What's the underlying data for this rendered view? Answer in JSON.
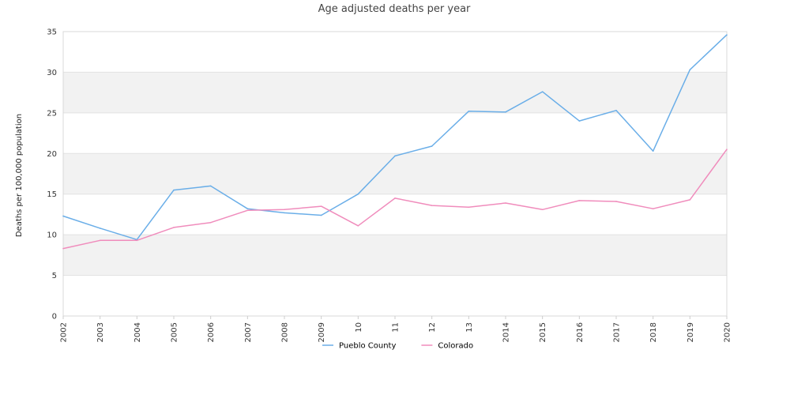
{
  "chart_data": {
    "type": "line",
    "title": "Age adjusted deaths per year",
    "xlabel": "",
    "ylabel": "Deaths per 100,000 population",
    "categories": [
      "2002",
      "2003",
      "2004",
      "2005",
      "2006",
      "2007",
      "2008",
      "2009",
      "2010",
      "2011",
      "2012",
      "2013",
      "2014",
      "2015",
      "2016",
      "2017",
      "2018",
      "2019",
      "2020"
    ],
    "tick_labels": [
      "2002",
      "2003",
      "2004",
      "2005",
      "2006",
      "2007",
      "2008",
      "2009",
      "10",
      "11",
      "12",
      "13",
      "2014",
      "2015",
      "2016",
      "2017",
      "2018",
      "2019",
      "2020"
    ],
    "ylim": [
      0,
      35
    ],
    "yticks": [
      0,
      5,
      10,
      15,
      20,
      25,
      30,
      35
    ],
    "grid": "horizontal bands",
    "legend_position": "bottom",
    "series": [
      {
        "name": "Pueblo County",
        "color": "#6aaee8",
        "values": [
          12.3,
          10.8,
          9.4,
          15.5,
          16.0,
          13.2,
          12.7,
          12.4,
          15.0,
          19.7,
          20.9,
          25.2,
          25.1,
          27.6,
          24.0,
          25.3,
          20.3,
          30.3,
          34.6
        ]
      },
      {
        "name": "Colorado",
        "color": "#f08cbc",
        "values": [
          8.3,
          9.3,
          9.3,
          10.9,
          11.5,
          13.0,
          13.1,
          13.5,
          11.1,
          14.5,
          13.6,
          13.4,
          13.9,
          13.1,
          14.2,
          14.1,
          13.2,
          14.3,
          20.5
        ]
      }
    ]
  }
}
